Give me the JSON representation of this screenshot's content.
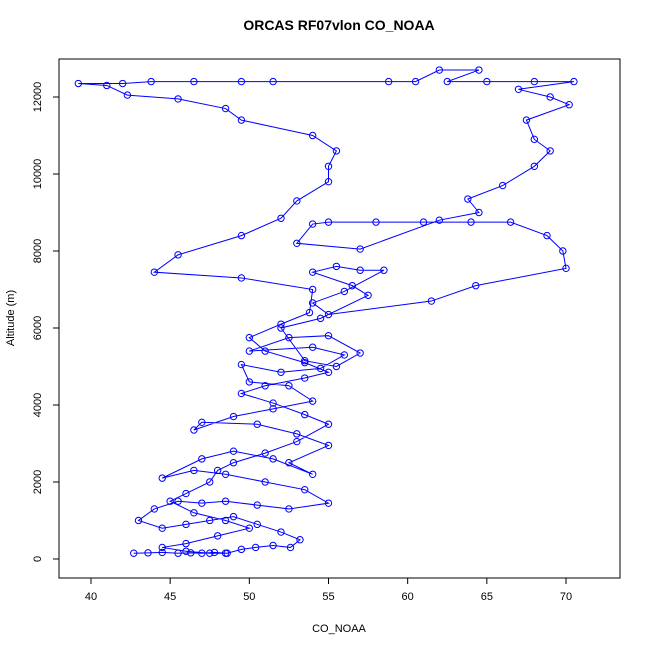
{
  "chart_data": {
    "type": "line",
    "title": "ORCAS RF07vlon CO_NOAA",
    "x_label": "CO_NOAA",
    "y_label": "Altitude (m)",
    "color": "#0000ff",
    "markers": true,
    "x": [
      42.7,
      43.6,
      44.5,
      45.5,
      46.3,
      47.0,
      47.8,
      48.6,
      49.5,
      50.4,
      51.5,
      52.6,
      53.2,
      52.0,
      50.5,
      49.0,
      47.5,
      46.0,
      44.5,
      43.0,
      44.0,
      45.5,
      47.0,
      48.5,
      50.5,
      52.5,
      55.0,
      53.5,
      51.0,
      48.5,
      46.5,
      44.5,
      47.0,
      49.0,
      51.5,
      54.0,
      52.5,
      55.0,
      53.0,
      50.5,
      47.0,
      46.5,
      49.0,
      51.5,
      54.0,
      52.5,
      50.0,
      49.5,
      52.0,
      54.5,
      56.0,
      54.0,
      50.0,
      52.5,
      55.0,
      57.0,
      55.5,
      53.5,
      52.0,
      54.5,
      57.5,
      56.5,
      54.0,
      55.5,
      57.0,
      58.5,
      56.0,
      54.0,
      55.0,
      61.5,
      64.3,
      70.0,
      69.8,
      68.8,
      66.5,
      64.0,
      61.0,
      58.0,
      55.0,
      54.0,
      53.0,
      57.0,
      62.0,
      64.5,
      63.8,
      66.0,
      68.0,
      69.0,
      68.0,
      67.5,
      70.2,
      69.0,
      67.0,
      70.5,
      68.0,
      65.0,
      62.5,
      64.5,
      62.0,
      60.5,
      58.8,
      51.5,
      49.5,
      46.5,
      43.8,
      42.0,
      39.2,
      41.0,
      42.3,
      45.5,
      48.5,
      49.5,
      54.0,
      55.5,
      55.0,
      55.0,
      53.0,
      52.0,
      49.5,
      45.5,
      44.0,
      49.5,
      54.0,
      53.8,
      52.0,
      50.0,
      51.0,
      53.5,
      55.0,
      53.5,
      51.0,
      49.5,
      51.5,
      53.5,
      55.0,
      53.0,
      51.0,
      49.0,
      48.0,
      47.5,
      46.0,
      45.0,
      46.5,
      48.5,
      50.0,
      48.0,
      46.0,
      44.5,
      46.0,
      47.5,
      48.5
    ],
    "values": [
      150,
      160,
      170,
      150,
      160,
      150,
      170,
      150,
      250,
      300,
      350,
      300,
      500,
      700,
      900,
      1100,
      1000,
      900,
      800,
      1000,
      1300,
      1500,
      1450,
      1500,
      1400,
      1300,
      1450,
      1800,
      2000,
      2200,
      2300,
      2100,
      2600,
      2800,
      2600,
      2200,
      2500,
      2950,
      3250,
      3500,
      3550,
      3350,
      3700,
      3900,
      4100,
      4500,
      4600,
      5050,
      4850,
      4950,
      5300,
      5500,
      5400,
      5750,
      5800,
      5350,
      5000,
      5150,
      6000,
      6250,
      6850,
      7100,
      7450,
      7600,
      7500,
      7500,
      6950,
      6650,
      6350,
      6700,
      7100,
      7550,
      8000,
      8400,
      8750,
      8750,
      8750,
      8750,
      8750,
      8700,
      8200,
      8050,
      8800,
      9000,
      9350,
      9700,
      10200,
      10600,
      10900,
      11400,
      11800,
      12000,
      12200,
      12400,
      12400,
      12400,
      12400,
      12700,
      12700,
      12400,
      12400,
      12400,
      12400,
      12400,
      12400,
      12350,
      12350,
      12300,
      12050,
      11950,
      11700,
      11400,
      11000,
      10600,
      10200,
      9800,
      9300,
      8850,
      8400,
      7900,
      7450,
      7300,
      7000,
      6400,
      6100,
      5750,
      5400,
      5100,
      4850,
      4700,
      4500,
      4300,
      4050,
      3750,
      3500,
      3050,
      2750,
      2500,
      2300,
      2000,
      1700,
      1500,
      1200,
      1000,
      800,
      600,
      400,
      300,
      200,
      150,
      150
    ],
    "xlim": [
      37.98,
      73.41
    ],
    "ylim": [
      -494,
      12987
    ],
    "xticks": [
      40,
      45,
      50,
      55,
      60,
      65,
      70
    ],
    "yticks": [
      0,
      2000,
      4000,
      6000,
      8000,
      10000,
      12000
    ]
  }
}
